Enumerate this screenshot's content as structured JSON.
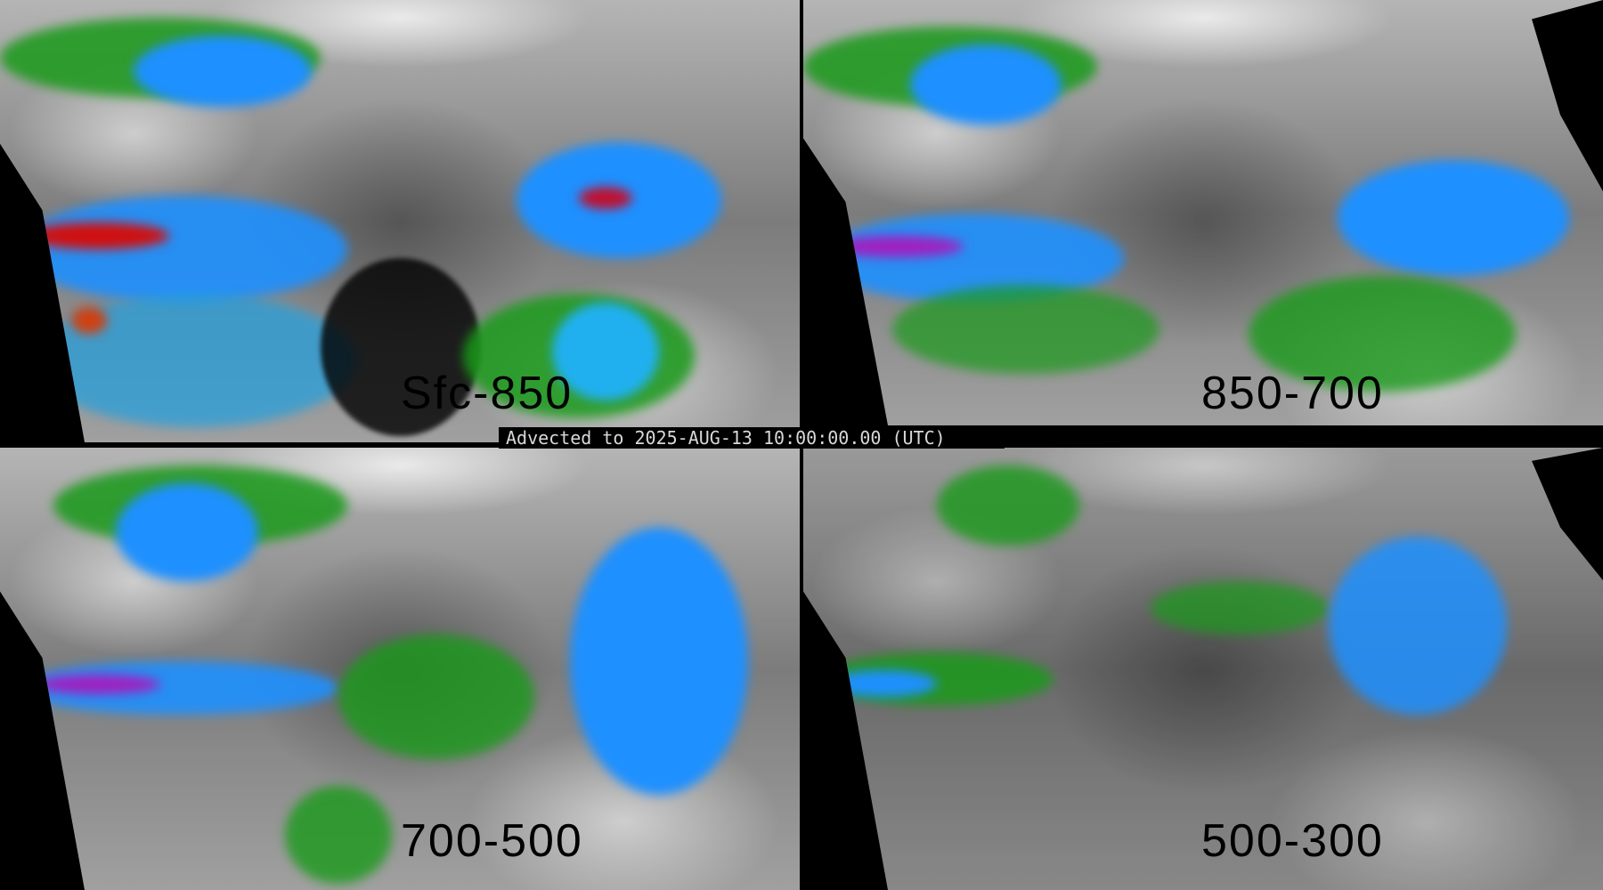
{
  "caption": "Advected to 2025-AUG-13 10:00:00.00 (UTC)",
  "panels": [
    {
      "label": "Sfc-850"
    },
    {
      "label": "850-700"
    },
    {
      "label": "700-500"
    },
    {
      "label": "500-300"
    }
  ],
  "colors": {
    "background": "#000000",
    "low": "#8a8a8a",
    "green": "#1a9a1a",
    "blue": "#1e90ff",
    "cyan": "#20c8f0",
    "purple": "#a020c0",
    "red": "#d01010"
  }
}
